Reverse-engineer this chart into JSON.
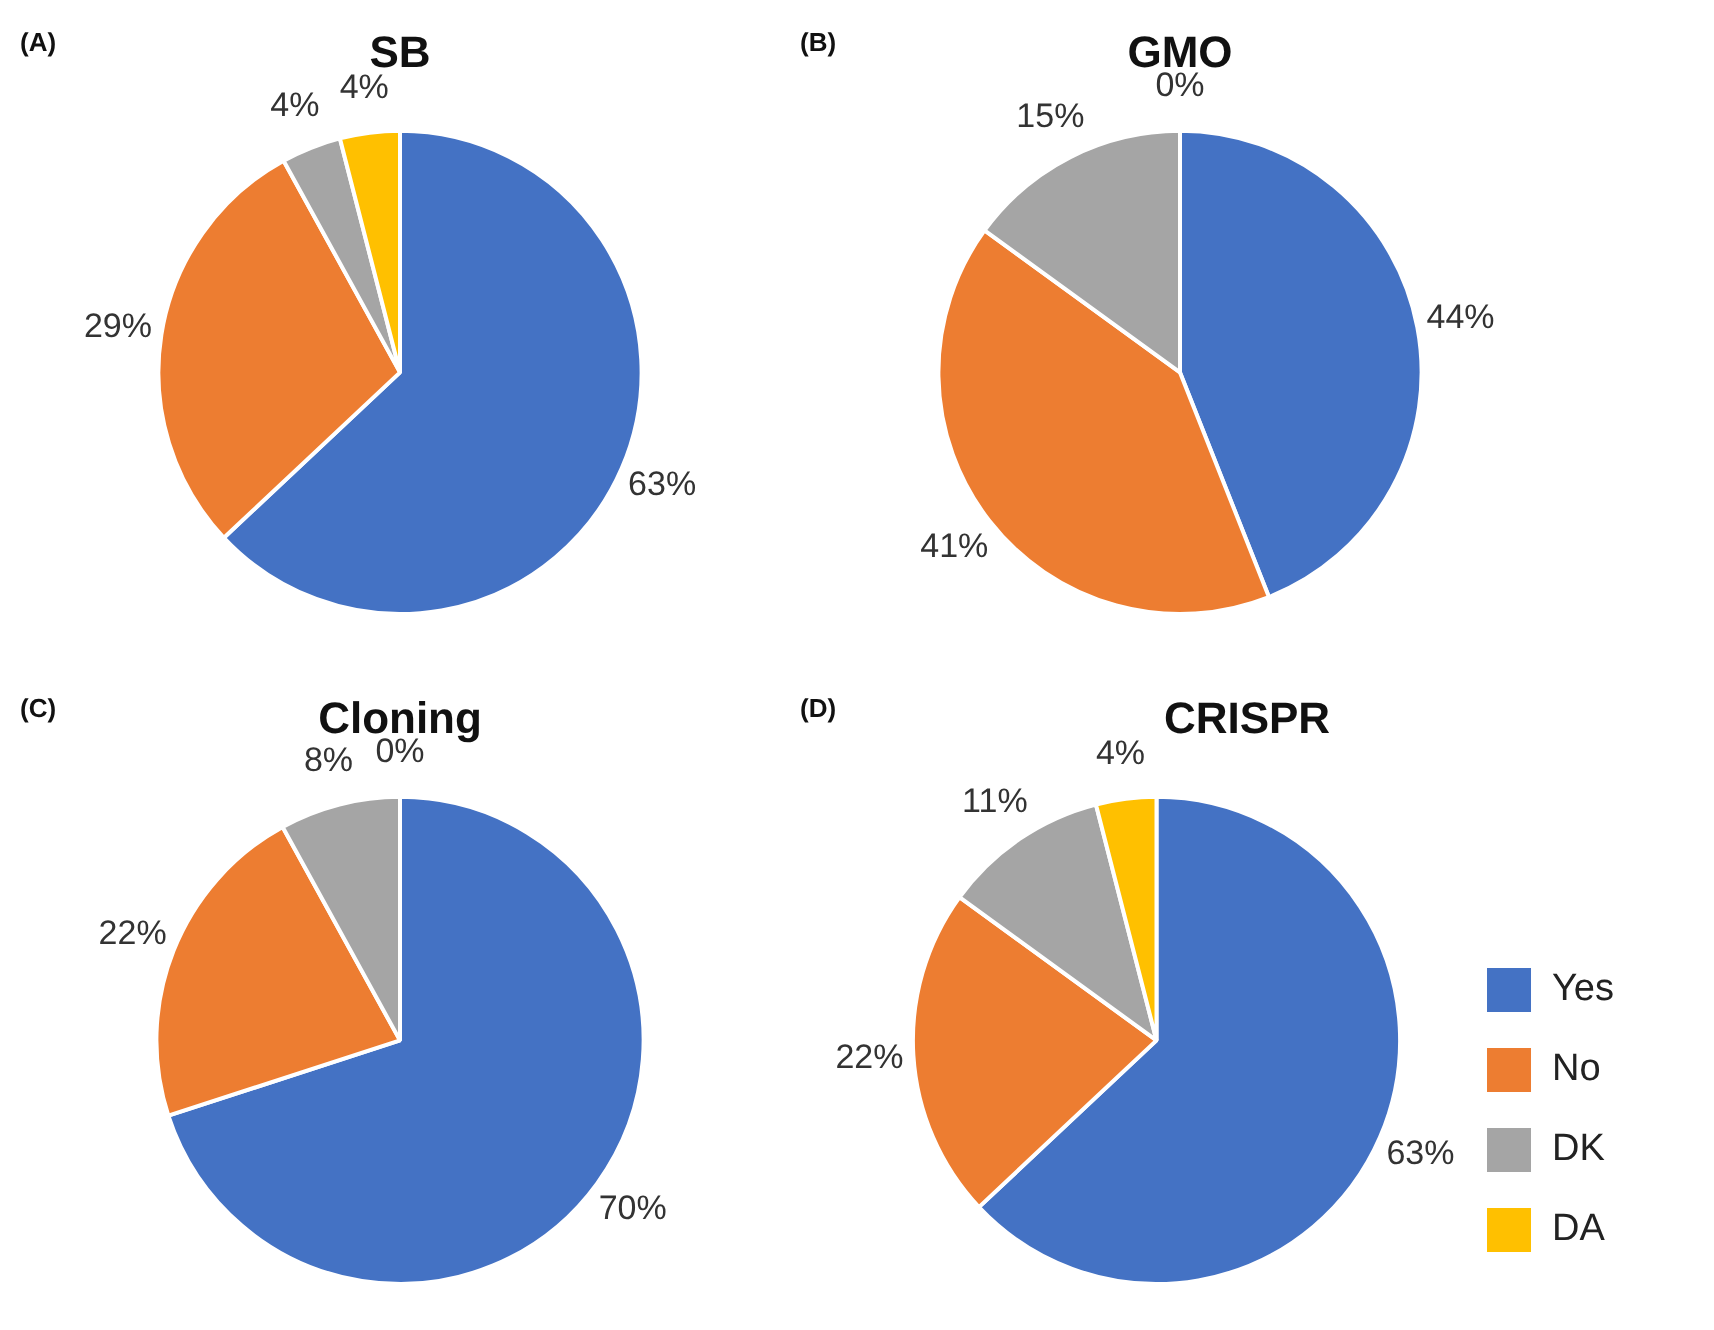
{
  "chart_data": [
    {
      "type": "pie",
      "title": "SB",
      "annotations": [
        "(A)"
      ],
      "categories": [
        null,
        null,
        null,
        null
      ],
      "values": [
        63,
        29,
        4,
        4
      ],
      "value_labels": [
        "63%",
        "29%",
        "4%",
        "4%"
      ],
      "colors": [
        "#4472c4",
        "#ed7d31",
        "#a5a5a5",
        "#ffc000"
      ],
      "legend": false
    },
    {
      "type": "pie",
      "title": "GMO",
      "annotations": [
        "(B)"
      ],
      "categories": [
        null,
        null,
        null,
        null
      ],
      "values": [
        44,
        41,
        15,
        0
      ],
      "value_labels": [
        "44%",
        "41%",
        "15%",
        "0%"
      ],
      "colors": [
        "#4472c4",
        "#ed7d31",
        "#a5a5a5",
        "#ffc000"
      ],
      "legend": false
    },
    {
      "type": "pie",
      "title": "Cloning",
      "annotations": [
        "(C)"
      ],
      "categories": [
        null,
        null,
        null,
        null
      ],
      "values": [
        70,
        22,
        8,
        0
      ],
      "value_labels": [
        "70%",
        "22%",
        "8%",
        "0%"
      ],
      "colors": [
        "#4472c4",
        "#ed7d31",
        "#a5a5a5",
        "#ffc000"
      ],
      "legend": false
    },
    {
      "type": "pie",
      "title": "CRISPR",
      "annotations": [
        "(D)"
      ],
      "categories": [
        "Yes",
        "No",
        "DK",
        "DA"
      ],
      "values": [
        63,
        22,
        11,
        4
      ],
      "value_labels": [
        "63%",
        "22%",
        "11%",
        "4%"
      ],
      "colors": [
        "#4472c4",
        "#ed7d31",
        "#a5a5a5",
        "#ffc000"
      ],
      "legend": "bottom right"
    }
  ]
}
